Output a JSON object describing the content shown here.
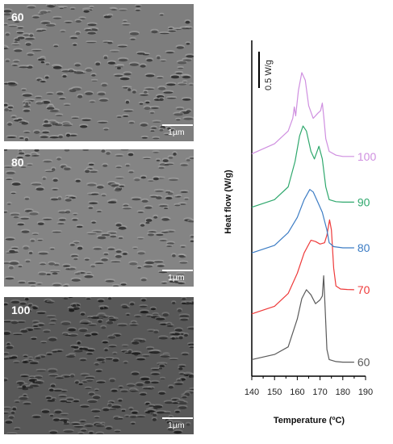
{
  "sem_images": [
    {
      "label": "60",
      "scale_text": "1µm",
      "base": "#7d7d7d",
      "dark": "#262626",
      "light": "#b3b3b3"
    },
    {
      "label": "80",
      "scale_text": "1µm",
      "base": "#848484",
      "dark": "#2b2b2b",
      "light": "#b0b0b0"
    },
    {
      "label": "100",
      "scale_text": "1µm",
      "base": "#585858",
      "dark": "#161616",
      "light": "#8e8e8e"
    }
  ],
  "chart_data": {
    "type": "line",
    "title": "",
    "xlabel": "Temperature (ºC)",
    "ylabel": "Heat flow (W/g)",
    "xlim": [
      140,
      190
    ],
    "x_ticks": [
      "140",
      "150",
      "160",
      "170",
      "180",
      "190"
    ],
    "scale_bar_label": "0.5 W/g",
    "series": [
      {
        "name": "60",
        "color": "#5a5a5a",
        "points": [
          [
            140,
            4.0
          ],
          [
            150,
            6.0
          ],
          [
            156,
            9.0
          ],
          [
            160,
            20.0
          ],
          [
            162,
            28.0
          ],
          [
            164,
            31.5
          ],
          [
            166,
            29.5
          ],
          [
            168,
            26.0
          ],
          [
            170,
            27.5
          ],
          [
            171,
            29.0
          ],
          [
            171.6,
            37.0
          ],
          [
            172.2,
            25.0
          ],
          [
            173,
            8.0
          ],
          [
            174,
            4.0
          ],
          [
            177,
            3.2
          ],
          [
            180,
            3.0
          ],
          [
            185,
            3.0
          ]
        ]
      },
      {
        "name": "70",
        "color": "#ee3a3a",
        "points": [
          [
            140,
            22.0
          ],
          [
            150,
            25.0
          ],
          [
            156,
            30.0
          ],
          [
            160,
            38.0
          ],
          [
            163,
            46.0
          ],
          [
            166,
            51.0
          ],
          [
            168,
            50.5
          ],
          [
            170,
            49.5
          ],
          [
            172,
            50.0
          ],
          [
            173,
            53.0
          ],
          [
            174.2,
            59.0
          ],
          [
            175,
            55.0
          ],
          [
            176,
            40.0
          ],
          [
            177,
            33.0
          ],
          [
            179,
            31.8
          ],
          [
            182,
            31.6
          ],
          [
            185,
            31.5
          ]
        ]
      },
      {
        "name": "80",
        "color": "#3c7cc4",
        "points": [
          [
            140,
            46.0
          ],
          [
            150,
            49.0
          ],
          [
            156,
            54.0
          ],
          [
            160,
            60.0
          ],
          [
            163,
            67.0
          ],
          [
            165.5,
            71.0
          ],
          [
            167,
            70.0
          ],
          [
            169,
            66.0
          ],
          [
            171,
            62.0
          ],
          [
            173,
            55.0
          ],
          [
            174,
            50.0
          ],
          [
            176,
            48.5
          ],
          [
            180,
            48.0
          ],
          [
            185,
            48.0
          ]
        ]
      },
      {
        "name": "90",
        "color": "#2fa86d",
        "points": [
          [
            140,
            64.0
          ],
          [
            150,
            67.0
          ],
          [
            156,
            72.0
          ],
          [
            159,
            82.0
          ],
          [
            161,
            92.0
          ],
          [
            162.5,
            96.0
          ],
          [
            164,
            94.0
          ],
          [
            166,
            86.0
          ],
          [
            167.5,
            83.0
          ],
          [
            169.5,
            88.0
          ],
          [
            171,
            83.0
          ],
          [
            172.5,
            72.0
          ],
          [
            174,
            67.0
          ],
          [
            177,
            66.2
          ],
          [
            180,
            66.0
          ],
          [
            185,
            66.0
          ]
        ]
      },
      {
        "name": "100",
        "color": "#cf8fe0",
        "points": [
          [
            140,
            85.0
          ],
          [
            150,
            89.0
          ],
          [
            156,
            94.0
          ],
          [
            158,
            99.0
          ],
          [
            158.7,
            103.5
          ],
          [
            159.3,
            100.0
          ],
          [
            160.5,
            110.0
          ],
          [
            162,
            117.0
          ],
          [
            163.5,
            114.0
          ],
          [
            165,
            104.0
          ],
          [
            167,
            99.0
          ],
          [
            169,
            101.0
          ],
          [
            170.2,
            102.0
          ],
          [
            171,
            105.0
          ],
          [
            171.6,
            100.0
          ],
          [
            172.5,
            91.0
          ],
          [
            174,
            86.0
          ],
          [
            177,
            84.5
          ],
          [
            180,
            84.0
          ],
          [
            185,
            84.0
          ]
        ]
      }
    ]
  }
}
